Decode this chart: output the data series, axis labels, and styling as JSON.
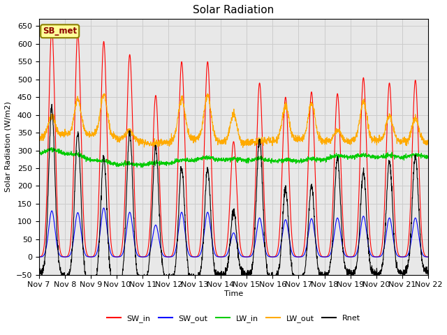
{
  "title": "Solar Radiation",
  "ylabel": "Solar Radiation (W/m2)",
  "xlabel": "Time",
  "ylim": [
    -50,
    670
  ],
  "xlim": [
    0,
    15
  ],
  "label_box": "SB_met",
  "colors": {
    "SW_in": "#ff0000",
    "SW_out": "#0000ff",
    "LW_in": "#00cc00",
    "LW_out": "#ffaa00",
    "Rnet": "#000000"
  },
  "xtick_labels": [
    "Nov 7",
    "Nov 8",
    "Nov 9",
    "Nov 10",
    "Nov 11",
    "Nov 12",
    "Nov 13",
    "Nov 14",
    "Nov 15",
    "Nov 16",
    "Nov 17",
    "Nov 18",
    "Nov 19",
    "Nov 20",
    "Nov 21",
    "Nov 22"
  ],
  "xtick_positions": [
    0,
    1,
    2,
    3,
    4,
    5,
    6,
    7,
    8,
    9,
    10,
    11,
    12,
    13,
    14,
    15
  ],
  "yticks": [
    -50,
    0,
    50,
    100,
    150,
    200,
    250,
    300,
    350,
    400,
    450,
    500,
    550,
    600,
    650
  ],
  "grid_color": "#cccccc",
  "bg_color": "#e8e8e8",
  "linewidth": 0.8
}
